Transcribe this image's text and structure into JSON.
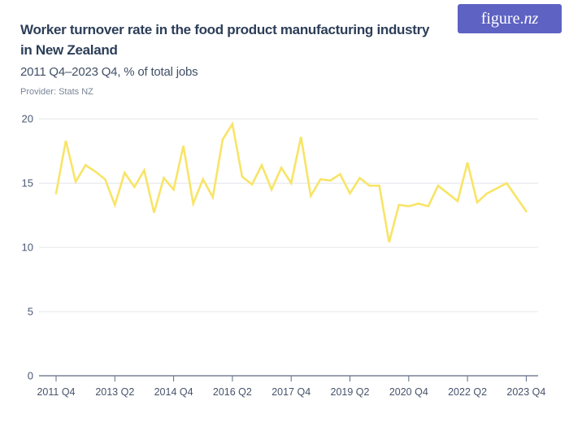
{
  "header": {
    "title_lines": [
      "Worker turnover rate in the food product manufacturing industry",
      "in New Zealand"
    ],
    "subtitle": "2011 Q4–2023 Q4, % of total jobs",
    "provider": "Provider: Stats NZ",
    "logo": {
      "text_main": "figure.",
      "text_suffix": "nz"
    }
  },
  "colors": {
    "line": "#F8E467",
    "title": "#2C3E58",
    "subtitle": "#415067",
    "provider": "#7A8598",
    "axis": "#5D6C85",
    "tick_label": "#46536B",
    "gridline": "#E4E6EA",
    "logo_bg": "#5E62C3"
  },
  "axes": {
    "y_labels": [
      "20",
      "15",
      "10",
      "5",
      "0"
    ],
    "x_labels": [
      "2011 Q4",
      "2013 Q2",
      "2014 Q4",
      "2016 Q2",
      "2017 Q4",
      "2019 Q2",
      "2020 Q4",
      "2022 Q2",
      "2023 Q4"
    ]
  },
  "chart_data": {
    "type": "line",
    "title": "Worker turnover rate in the food product manufacturing industry in New Zealand",
    "subtitle": "2011 Q4–2023 Q4, % of total jobs",
    "provider": "Stats NZ",
    "ylabel": "% of total jobs",
    "xlabel": "",
    "ylim": [
      0,
      20
    ],
    "y_ticks": [
      0,
      5,
      10,
      15,
      20
    ],
    "grid": true,
    "legend": false,
    "series_color": "#F8E467",
    "x": [
      "2011 Q4",
      "2012 Q1",
      "2012 Q2",
      "2012 Q3",
      "2012 Q4",
      "2013 Q1",
      "2013 Q2",
      "2013 Q3",
      "2013 Q4",
      "2014 Q1",
      "2014 Q2",
      "2014 Q3",
      "2014 Q4",
      "2015 Q1",
      "2015 Q2",
      "2015 Q3",
      "2015 Q4",
      "2016 Q1",
      "2016 Q2",
      "2016 Q3",
      "2016 Q4",
      "2017 Q1",
      "2017 Q2",
      "2017 Q3",
      "2017 Q4",
      "2018 Q1",
      "2018 Q2",
      "2018 Q3",
      "2018 Q4",
      "2019 Q1",
      "2019 Q2",
      "2019 Q3",
      "2019 Q4",
      "2020 Q1",
      "2020 Q2",
      "2020 Q3",
      "2020 Q4",
      "2021 Q1",
      "2021 Q2",
      "2021 Q3",
      "2021 Q4",
      "2022 Q1",
      "2022 Q2",
      "2022 Q3",
      "2022 Q4",
      "2023 Q1",
      "2023 Q2",
      "2023 Q3",
      "2023 Q4"
    ],
    "values": [
      14.2,
      18.3,
      15.1,
      16.4,
      15.9,
      15.3,
      13.3,
      15.8,
      14.7,
      16.0,
      12.7,
      15.4,
      14.5,
      17.9,
      13.4,
      15.3,
      13.9,
      18.4,
      19.6,
      15.5,
      14.9,
      16.4,
      14.5,
      16.2,
      15.0,
      18.6,
      14.0,
      15.3,
      15.2,
      15.7,
      14.2,
      15.4,
      14.8,
      14.8,
      10.4,
      13.3,
      13.2,
      13.4,
      13.2,
      14.8,
      14.2,
      13.6,
      16.6,
      13.5,
      14.2,
      14.6,
      15.0,
      13.9,
      12.8
    ]
  }
}
